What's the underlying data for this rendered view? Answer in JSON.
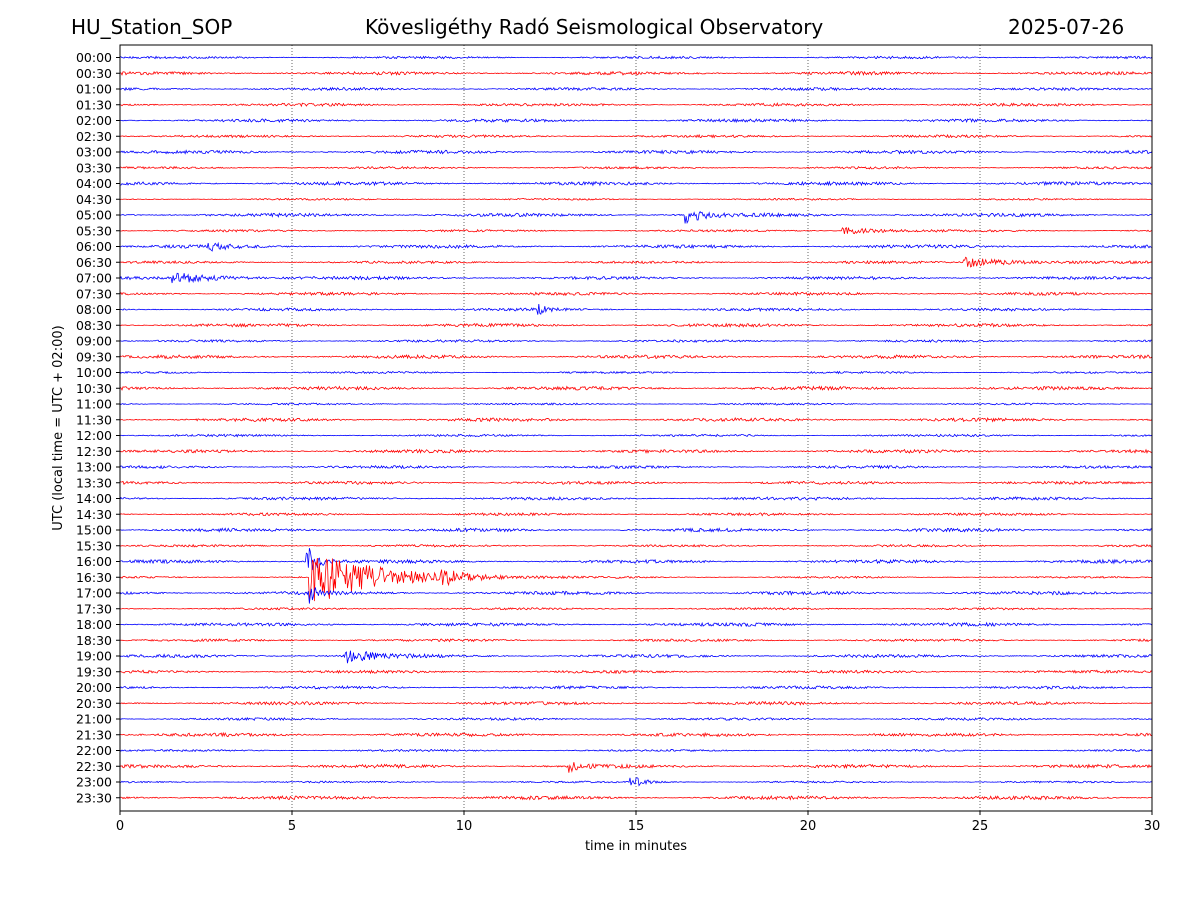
{
  "header": {
    "station": "HU_Station_SOP",
    "observatory": "Kövesligéthy Radó Seismological Observatory",
    "date": "2025-07-26"
  },
  "chart_data": {
    "type": "line",
    "chart_kind": "helicorder",
    "xlabel": "time in minutes",
    "ylabel": "UTC (local time = UTC + 02:00)",
    "xlim": [
      0,
      30
    ],
    "xticks": [
      0,
      5,
      10,
      15,
      20,
      25,
      30
    ],
    "x_gridlines": [
      5,
      10,
      15,
      20,
      25
    ],
    "grid_style": "dotted vertical",
    "trace_colors": [
      "#0000ff",
      "#ff0000"
    ],
    "color_pattern": "alternating, starting with blue at 00:00",
    "rows": [
      {
        "label": "00:00",
        "events": []
      },
      {
        "label": "00:30",
        "events": []
      },
      {
        "label": "01:00",
        "events": []
      },
      {
        "label": "01:30",
        "events": []
      },
      {
        "label": "02:00",
        "events": []
      },
      {
        "label": "02:30",
        "events": []
      },
      {
        "label": "03:00",
        "events": []
      },
      {
        "label": "03:30",
        "events": []
      },
      {
        "label": "04:00",
        "events": []
      },
      {
        "label": "04:30",
        "events": []
      },
      {
        "label": "05:00",
        "events": [
          {
            "t": 16.4,
            "amp": 9,
            "dur": 1.2
          }
        ]
      },
      {
        "label": "05:30",
        "events": [
          {
            "t": 21,
            "amp": 4,
            "dur": 2
          }
        ]
      },
      {
        "label": "06:00",
        "events": [
          {
            "t": 2.5,
            "amp": 5,
            "dur": 1
          }
        ]
      },
      {
        "label": "06:30",
        "events": [
          {
            "t": 24.5,
            "amp": 5,
            "dur": 3
          }
        ]
      },
      {
        "label": "07:00",
        "events": [
          {
            "t": 1.5,
            "amp": 5,
            "dur": 3
          }
        ]
      },
      {
        "label": "07:30",
        "events": []
      },
      {
        "label": "08:00",
        "events": [
          {
            "t": 12.1,
            "amp": 6,
            "dur": 0.5
          }
        ]
      },
      {
        "label": "08:30",
        "events": []
      },
      {
        "label": "09:00",
        "events": []
      },
      {
        "label": "09:30",
        "events": []
      },
      {
        "label": "10:00",
        "events": []
      },
      {
        "label": "10:30",
        "events": []
      },
      {
        "label": "11:00",
        "events": []
      },
      {
        "label": "11:30",
        "events": []
      },
      {
        "label": "12:00",
        "events": []
      },
      {
        "label": "12:30",
        "events": []
      },
      {
        "label": "13:00",
        "events": []
      },
      {
        "label": "13:30",
        "events": []
      },
      {
        "label": "14:00",
        "events": []
      },
      {
        "label": "14:30",
        "events": []
      },
      {
        "label": "15:00",
        "events": []
      },
      {
        "label": "15:30",
        "events": []
      },
      {
        "label": "16:00",
        "events": [
          {
            "t": 5.4,
            "amp": 20,
            "dur": 0.6
          }
        ]
      },
      {
        "label": "16:30",
        "events": [
          {
            "t": 5.5,
            "amp": 30,
            "dur": 4
          },
          {
            "t": 9.3,
            "amp": 6,
            "dur": 1.5
          }
        ]
      },
      {
        "label": "17:00",
        "events": [
          {
            "t": 5.5,
            "amp": 12,
            "dur": 0.4
          }
        ]
      },
      {
        "label": "17:30",
        "events": []
      },
      {
        "label": "18:00",
        "events": []
      },
      {
        "label": "18:30",
        "events": []
      },
      {
        "label": "19:00",
        "events": [
          {
            "t": 6.5,
            "amp": 8,
            "dur": 1.5
          }
        ]
      },
      {
        "label": "19:30",
        "events": []
      },
      {
        "label": "20:00",
        "events": []
      },
      {
        "label": "20:30",
        "events": []
      },
      {
        "label": "21:00",
        "events": []
      },
      {
        "label": "21:30",
        "events": []
      },
      {
        "label": "22:00",
        "events": []
      },
      {
        "label": "22:30",
        "events": [
          {
            "t": 13,
            "amp": 6,
            "dur": 0.8
          }
        ]
      },
      {
        "label": "23:00",
        "events": [
          {
            "t": 14.8,
            "amp": 7,
            "dur": 0.8
          }
        ]
      },
      {
        "label": "23:30",
        "events": []
      }
    ]
  }
}
